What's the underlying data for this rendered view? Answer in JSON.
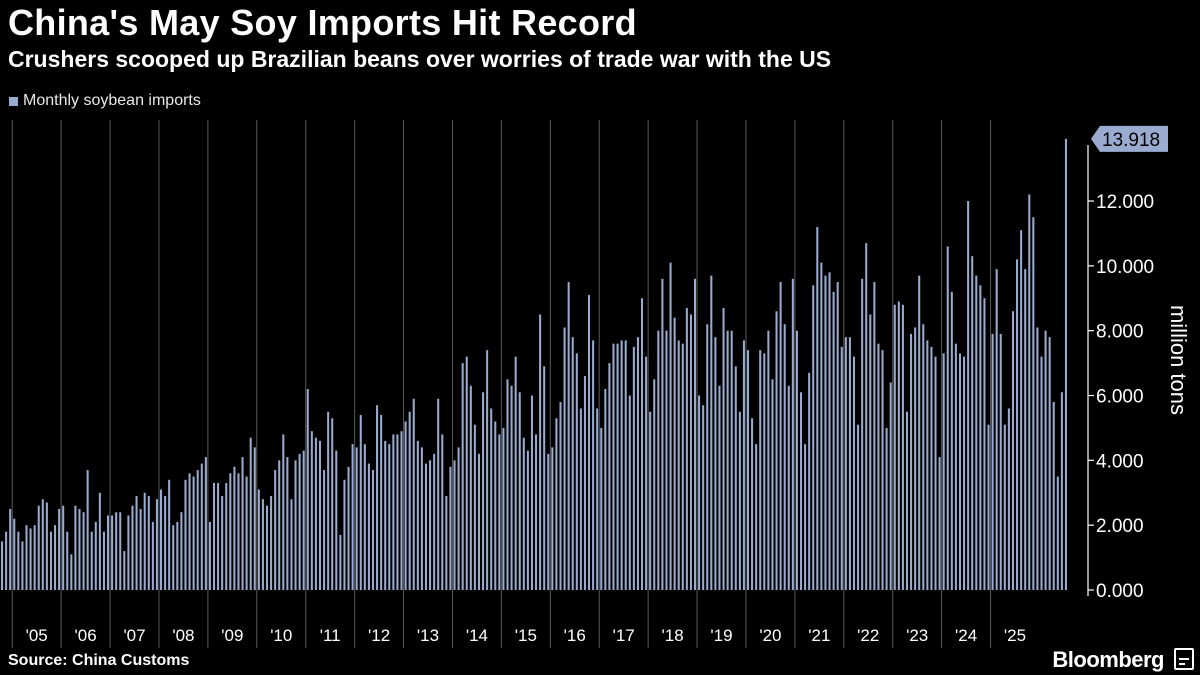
{
  "header": {
    "title": "China's May Soy Imports Hit Record",
    "subtitle": "Crushers scooped up Brazilian beans over worries of trade war with the US"
  },
  "footer": {
    "source": "Source: China Customs",
    "brand": "Bloomberg"
  },
  "colors": {
    "bar": "#9aabd0",
    "background": "#000000",
    "grid": "#5a5a5a",
    "callout": "#9aabd0"
  },
  "chart_data": {
    "type": "bar",
    "series": [
      {
        "name": "Monthly soybean imports",
        "start": "2004-10",
        "values": [
          1.5,
          1.8,
          2.5,
          2.2,
          1.8,
          1.5,
          2.0,
          1.9,
          2.0,
          2.6,
          2.8,
          2.7,
          1.8,
          2.0,
          2.5,
          2.6,
          1.8,
          1.1,
          2.6,
          2.5,
          2.4,
          3.7,
          1.8,
          2.1,
          3.0,
          1.8,
          2.3,
          2.3,
          2.4,
          2.4,
          1.2,
          2.3,
          2.6,
          2.9,
          2.5,
          3.0,
          2.9,
          2.1,
          2.8,
          3.1,
          2.9,
          3.4,
          2.0,
          2.1,
          2.4,
          3.4,
          3.6,
          3.5,
          3.7,
          3.9,
          4.1,
          2.1,
          3.3,
          3.3,
          2.9,
          3.3,
          3.6,
          3.8,
          3.6,
          4.1,
          3.5,
          4.7,
          4.4,
          3.1,
          2.8,
          2.6,
          2.9,
          3.7,
          4.0,
          4.8,
          4.1,
          2.8,
          4.0,
          4.2,
          4.3,
          6.2,
          4.9,
          4.7,
          4.6,
          3.7,
          5.5,
          5.3,
          4.3,
          1.7,
          3.4,
          3.8,
          4.5,
          4.4,
          5.4,
          4.5,
          3.9,
          3.7,
          5.7,
          5.4,
          4.6,
          4.5,
          4.8,
          4.8,
          4.9,
          5.2,
          5.5,
          5.9,
          4.6,
          4.4,
          3.9,
          4.0,
          4.2,
          5.9,
          4.8,
          2.9,
          3.8,
          4.0,
          4.4,
          7.0,
          7.2,
          6.3,
          5.1,
          4.2,
          6.1,
          7.4,
          5.6,
          5.2,
          4.8,
          5.0,
          6.5,
          6.3,
          7.2,
          6.1,
          4.7,
          4.3,
          6.0,
          4.8,
          8.5,
          6.9,
          4.2,
          4.4,
          5.3,
          5.8,
          8.1,
          9.5,
          7.8,
          7.3,
          5.6,
          6.6,
          9.1,
          7.7,
          5.6,
          5.0,
          6.2,
          7.0,
          7.6,
          7.6,
          7.7,
          7.7,
          6.0,
          7.5,
          7.8,
          9.0,
          7.2,
          5.5,
          6.5,
          8.0,
          9.6,
          8.0,
          10.1,
          8.4,
          7.7,
          7.6,
          8.7,
          8.5,
          9.6,
          6.0,
          5.7,
          8.2,
          9.7,
          7.8,
          6.3,
          8.7,
          8.0,
          8.0,
          6.9,
          5.5,
          7.7,
          7.4,
          5.3,
          4.5,
          7.4,
          7.3,
          8.0,
          6.5,
          8.6,
          9.5,
          8.2,
          6.3,
          9.6,
          8.0,
          6.1,
          4.5,
          6.7,
          9.4,
          11.2,
          10.1,
          9.7,
          9.8,
          9.2,
          9.5,
          7.5,
          7.8,
          7.8,
          7.2,
          5.1,
          9.6,
          10.7,
          8.5,
          9.5,
          7.6,
          7.4,
          5.0,
          6.4,
          8.8,
          8.9,
          8.8,
          5.5,
          7.9,
          8.1,
          9.7,
          8.2,
          7.7,
          7.5,
          7.2,
          4.1,
          7.3,
          10.6,
          9.2,
          7.6,
          7.3,
          7.2,
          12.0,
          10.3,
          9.7,
          9.4,
          9.0,
          5.1,
          7.9,
          9.9,
          7.9,
          5.1,
          5.6,
          8.6,
          10.2,
          11.1,
          9.9,
          12.2,
          11.5,
          8.1,
          7.2,
          8.0,
          7.8,
          5.8,
          3.5,
          6.1,
          13.918
        ]
      }
    ],
    "x_axis": {
      "tick_labels": [
        "'05",
        "'06",
        "'07",
        "'08",
        "'09",
        "'10",
        "'11",
        "'12",
        "'13",
        "'14",
        "'15",
        "'16",
        "'17",
        "'18",
        "'19",
        "'20",
        "'21",
        "'22",
        "'23",
        "'24",
        "'25"
      ],
      "range": [
        "2004-10",
        "2025-05"
      ]
    },
    "y_axis": {
      "label": "million tons",
      "position": "right",
      "ticks": [
        "0.000",
        "2.000",
        "4.000",
        "6.000",
        "8.000",
        "10.000",
        "12.000"
      ],
      "range": [
        0,
        14.5
      ]
    },
    "callout": {
      "label": "13.918",
      "value": 13.918
    },
    "grid": "vertical-year-lines",
    "legend_position": "top-left"
  }
}
